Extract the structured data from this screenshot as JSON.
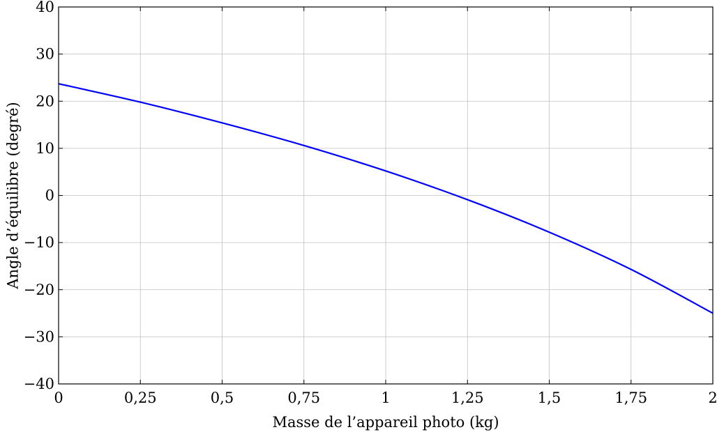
{
  "chart_data": {
    "type": "line",
    "title": "",
    "xlabel": "Masse de l’appareil photo (kg)",
    "ylabel": "Angle d’équilibre (degré)",
    "xlim": [
      0,
      2
    ],
    "ylim": [
      -40,
      40
    ],
    "grid": true,
    "x_ticks": [
      0,
      0.25,
      0.5,
      0.75,
      1,
      1.25,
      1.5,
      1.75,
      2
    ],
    "x_tick_labels": [
      "0",
      "0,25",
      "0,5",
      "0,75",
      "1",
      "1,25",
      "1,5",
      "1,75",
      "2"
    ],
    "y_ticks": [
      -40,
      -30,
      -20,
      -10,
      0,
      10,
      20,
      30,
      40
    ],
    "y_tick_labels": [
      "−40",
      "−30",
      "−20",
      "−10",
      "0",
      "10",
      "20",
      "30",
      "40"
    ],
    "series": [
      {
        "color": "#0000ff",
        "x": [
          0,
          0.25,
          0.5,
          0.75,
          1,
          1.25,
          1.5,
          1.75,
          2
        ],
        "y": [
          23.7,
          19.8,
          15.4,
          10.6,
          5.2,
          -0.9,
          -7.8,
          -15.7,
          -25.0
        ]
      }
    ]
  }
}
